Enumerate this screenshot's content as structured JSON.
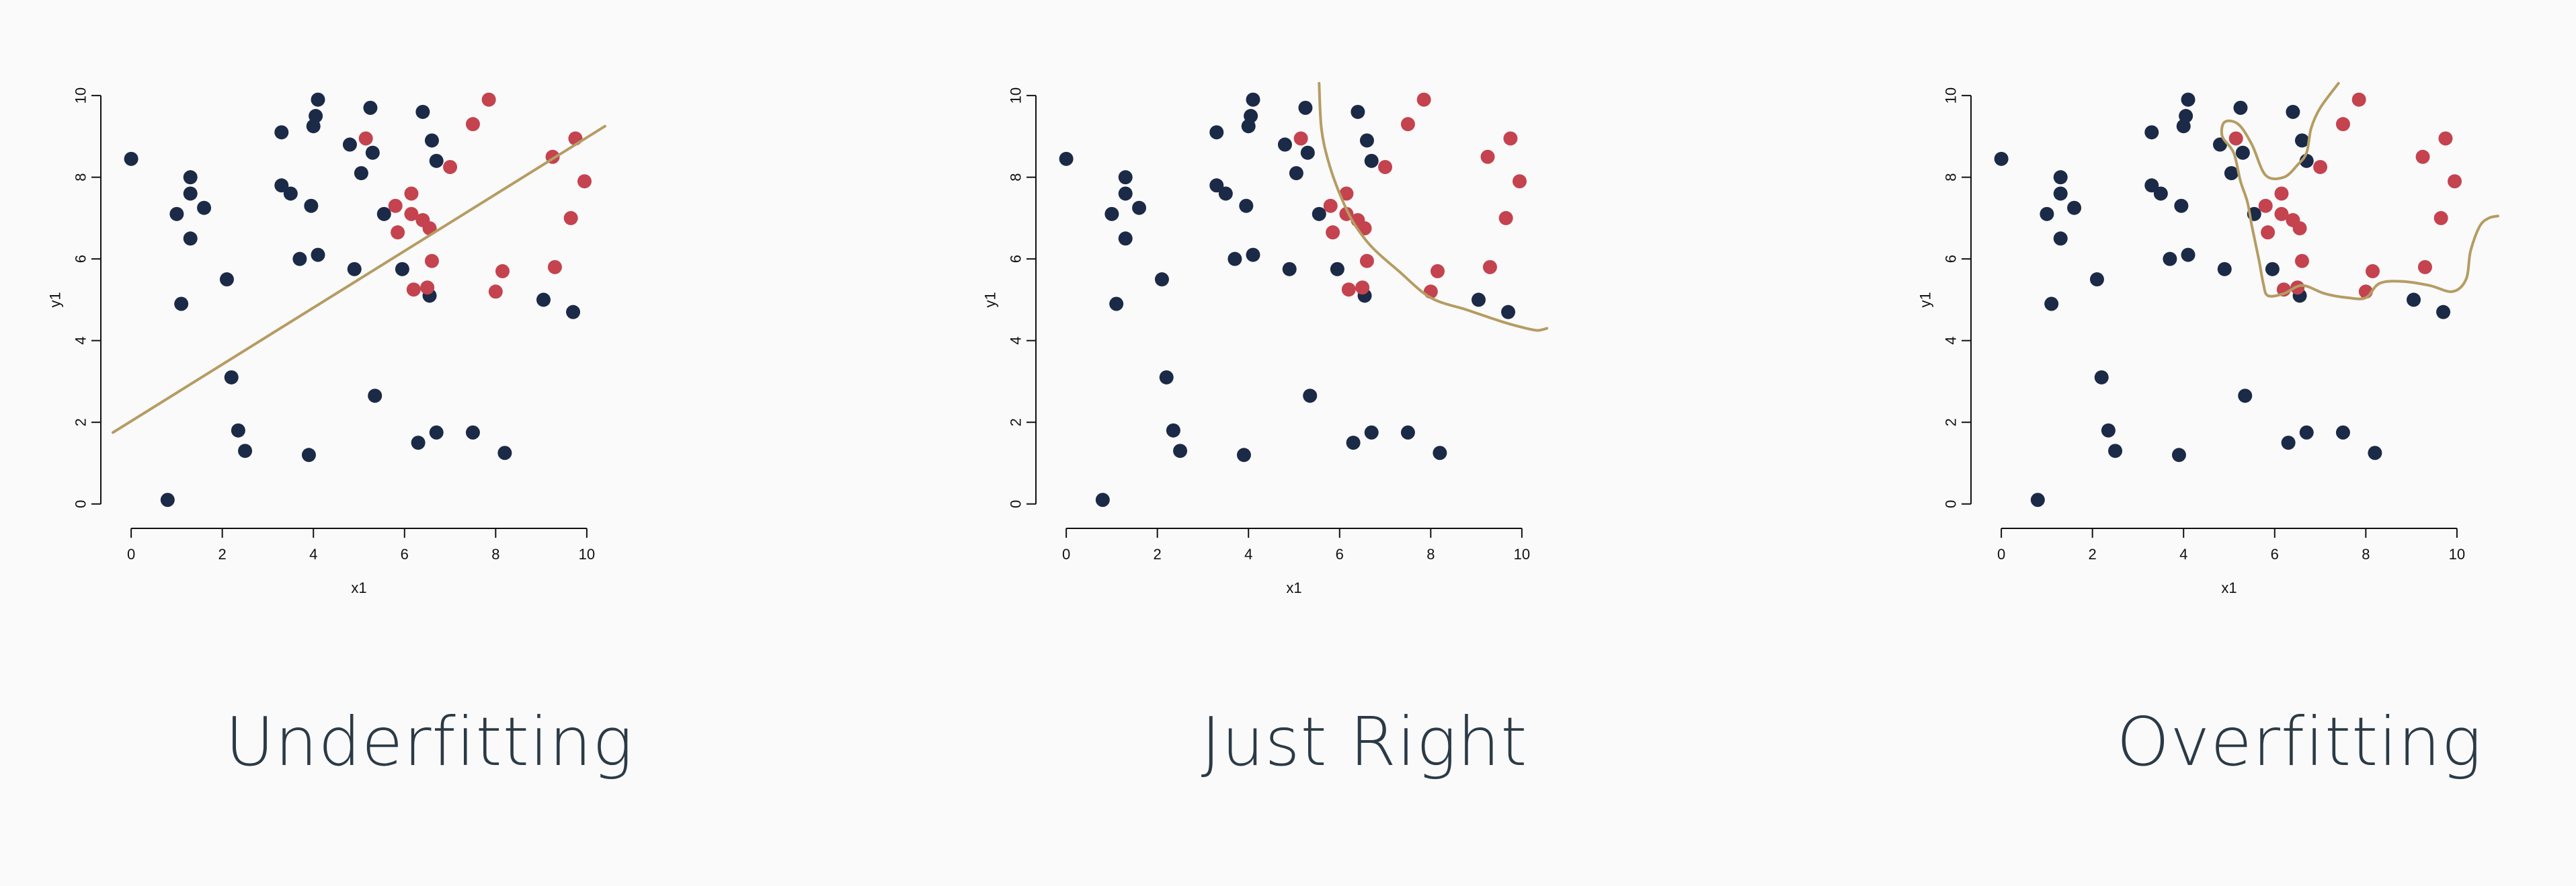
{
  "chart_data": [
    {
      "type": "scatter",
      "panel": "underfitting",
      "caption": "Underfitting",
      "xlabel": "x1",
      "ylabel": "y1",
      "xlim": [
        -0.4,
        10.4
      ],
      "ylim": [
        -0.4,
        10.2
      ],
      "xticks": [
        "0",
        "2",
        "4",
        "6",
        "8",
        "10"
      ],
      "yticks": [
        "0",
        "2",
        "4",
        "6",
        "8",
        "10"
      ],
      "series_colors": [
        "#1b2a47",
        "#c4434f"
      ],
      "boundary_color": "#b59c62",
      "boundary": [
        [
          -0.4,
          1.75
        ],
        [
          10.4,
          9.25
        ]
      ]
    },
    {
      "type": "scatter",
      "panel": "just-right",
      "caption": "Just Right",
      "xlabel": "x1",
      "ylabel": "y1",
      "xlim": [
        -0.4,
        10.4
      ],
      "ylim": [
        -0.4,
        10.2
      ],
      "xticks": [
        "0",
        "2",
        "4",
        "6",
        "8",
        "10"
      ],
      "yticks": [
        "0",
        "2",
        "4",
        "6",
        "8",
        "10"
      ],
      "series_colors": [
        "#1b2a47",
        "#c4434f"
      ],
      "boundary_color": "#b59c62",
      "boundary": [
        [
          5.55,
          10.3
        ],
        [
          5.6,
          9.2
        ],
        [
          5.75,
          8.4
        ],
        [
          6.0,
          7.6
        ],
        [
          6.3,
          6.9
        ],
        [
          6.7,
          6.3
        ],
        [
          7.3,
          5.7
        ],
        [
          8.0,
          5.05
        ],
        [
          8.8,
          4.75
        ],
        [
          9.6,
          4.45
        ],
        [
          10.1,
          4.3
        ],
        [
          10.35,
          4.25
        ],
        [
          10.55,
          4.3
        ]
      ]
    },
    {
      "type": "scatter",
      "panel": "overfitting",
      "caption": "Overfitting",
      "xlabel": "x1",
      "ylabel": "y1",
      "xlim": [
        -0.4,
        10.4
      ],
      "ylim": [
        -0.4,
        10.2
      ],
      "xticks": [
        "0",
        "2",
        "4",
        "6",
        "8",
        "10"
      ],
      "yticks": [
        "0",
        "2",
        "4",
        "6",
        "8",
        "10"
      ],
      "series_colors": [
        "#1b2a47",
        "#c4434f"
      ],
      "boundary_color": "#b59c62",
      "boundary": [
        [
          7.4,
          10.3
        ],
        [
          7.0,
          9.7
        ],
        [
          6.8,
          9.2
        ],
        [
          6.7,
          8.6
        ],
        [
          6.5,
          8.3
        ],
        [
          6.2,
          8.0
        ],
        [
          5.8,
          8.05
        ],
        [
          5.5,
          8.8
        ],
        [
          5.2,
          9.3
        ],
        [
          4.9,
          9.35
        ],
        [
          4.85,
          9.0
        ],
        [
          5.1,
          8.6
        ],
        [
          5.25,
          7.9
        ],
        [
          5.4,
          7.4
        ],
        [
          5.5,
          6.8
        ],
        [
          5.65,
          6.0
        ],
        [
          5.75,
          5.4
        ],
        [
          5.85,
          5.1
        ],
        [
          6.2,
          5.15
        ],
        [
          6.6,
          5.35
        ],
        [
          7.1,
          5.15
        ],
        [
          7.6,
          5.05
        ],
        [
          8.0,
          5.05
        ],
        [
          8.3,
          5.4
        ],
        [
          8.8,
          5.45
        ],
        [
          9.4,
          5.35
        ],
        [
          9.9,
          5.2
        ],
        [
          10.2,
          5.5
        ],
        [
          10.3,
          6.2
        ],
        [
          10.5,
          6.8
        ],
        [
          10.7,
          7.0
        ],
        [
          10.9,
          7.05
        ]
      ]
    }
  ],
  "points": {
    "class_a": [
      [
        0.0,
        8.45
      ],
      [
        1.0,
        7.1
      ],
      [
        1.1,
        4.9
      ],
      [
        1.3,
        7.6
      ],
      [
        1.3,
        8.0
      ],
      [
        1.3,
        6.5
      ],
      [
        1.6,
        7.25
      ],
      [
        2.1,
        5.5
      ],
      [
        2.2,
        3.1
      ],
      [
        2.35,
        1.8
      ],
      [
        2.5,
        1.3
      ],
      [
        3.3,
        9.1
      ],
      [
        3.3,
        7.8
      ],
      [
        3.5,
        7.6
      ],
      [
        3.7,
        6.0
      ],
      [
        3.9,
        1.2
      ],
      [
        3.95,
        7.3
      ],
      [
        4.0,
        9.25
      ],
      [
        4.05,
        9.5
      ],
      [
        4.1,
        9.9
      ],
      [
        4.1,
        6.1
      ],
      [
        4.8,
        8.8
      ],
      [
        4.9,
        5.75
      ],
      [
        5.05,
        8.1
      ],
      [
        5.25,
        9.7
      ],
      [
        5.3,
        8.6
      ],
      [
        5.35,
        2.65
      ],
      [
        5.55,
        7.1
      ],
      [
        5.95,
        5.75
      ],
      [
        6.3,
        1.5
      ],
      [
        6.4,
        9.6
      ],
      [
        6.55,
        5.1
      ],
      [
        6.6,
        8.9
      ],
      [
        6.7,
        8.4
      ],
      [
        6.7,
        1.75
      ],
      [
        7.5,
        1.75
      ],
      [
        8.2,
        1.25
      ],
      [
        9.05,
        5.0
      ],
      [
        9.7,
        4.7
      ],
      [
        0.8,
        0.1
      ]
    ],
    "class_b": [
      [
        5.15,
        8.95
      ],
      [
        5.8,
        7.3
      ],
      [
        5.85,
        6.65
      ],
      [
        6.15,
        7.6
      ],
      [
        6.15,
        7.1
      ],
      [
        6.2,
        5.25
      ],
      [
        6.4,
        6.95
      ],
      [
        6.5,
        5.3
      ],
      [
        6.55,
        6.75
      ],
      [
        6.6,
        5.95
      ],
      [
        7.0,
        8.25
      ],
      [
        7.5,
        9.3
      ],
      [
        7.85,
        9.9
      ],
      [
        8.0,
        5.2
      ],
      [
        8.15,
        5.7
      ],
      [
        9.25,
        8.5
      ],
      [
        9.3,
        5.8
      ],
      [
        9.65,
        7.0
      ],
      [
        9.75,
        8.95
      ],
      [
        9.95,
        7.9
      ]
    ]
  }
}
